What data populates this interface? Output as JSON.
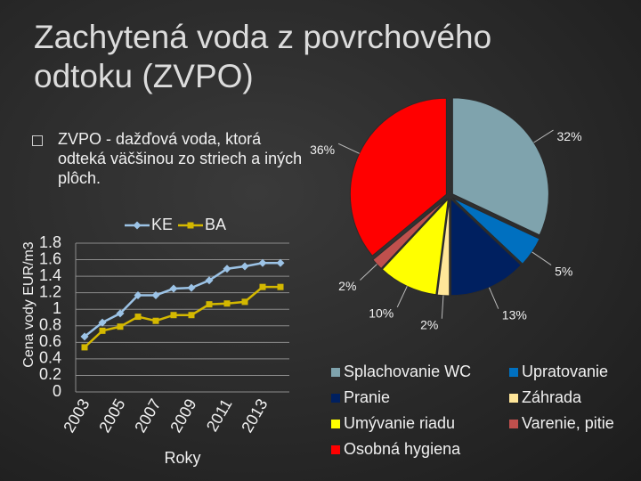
{
  "title": "Zachytená voda z povrchového odtoku (ZVPO)",
  "bullet": "ZVPO - dažďová voda, ktorá odteká väčšinou zo striech a iných plôch.",
  "chart_data": [
    {
      "type": "line",
      "categories": [
        "2003",
        null,
        "2005",
        null,
        "2007",
        null,
        "2009",
        null,
        "2011",
        null,
        "2013",
        null
      ],
      "series": [
        {
          "name": "KE",
          "color": "#9cc3e6",
          "marker": "diamond",
          "values": [
            0.67,
            0.84,
            0.95,
            1.17,
            1.17,
            1.25,
            1.26,
            1.35,
            1.49,
            1.52,
            1.56,
            1.56
          ]
        },
        {
          "name": "BA",
          "color": "#d4b800",
          "marker": "square",
          "values": [
            0.54,
            0.74,
            0.79,
            0.91,
            0.86,
            0.93,
            0.93,
            1.06,
            1.07,
            1.09,
            1.27,
            1.27
          ]
        }
      ],
      "ylim": [
        0,
        1.8
      ],
      "yticks": [
        0,
        0.2,
        0.4,
        0.6,
        0.8,
        1,
        1.2,
        1.4,
        1.6,
        1.8
      ],
      "xlabel": "Roky",
      "ylabel": "Cena vody EUR/m3",
      "grid": true,
      "legend": "top"
    },
    {
      "type": "pie",
      "categories": [
        "Splachovanie WC",
        "Upratovanie",
        "Pranie",
        "Záhrada",
        "Umývanie riadu",
        "Varenie, pitie",
        "Osobná hygiena"
      ],
      "values": [
        32,
        5,
        13,
        2,
        10,
        2,
        36
      ],
      "value_labels": [
        "32%",
        "5%",
        "13%",
        "2%",
        "10%",
        "2%",
        "36%"
      ],
      "colors": [
        "#7fa3ad",
        "#0070c0",
        "#002060",
        "#ffe699",
        "#ffff00",
        "#c0504d",
        "#ff0000"
      ],
      "legend": "bottom"
    }
  ]
}
